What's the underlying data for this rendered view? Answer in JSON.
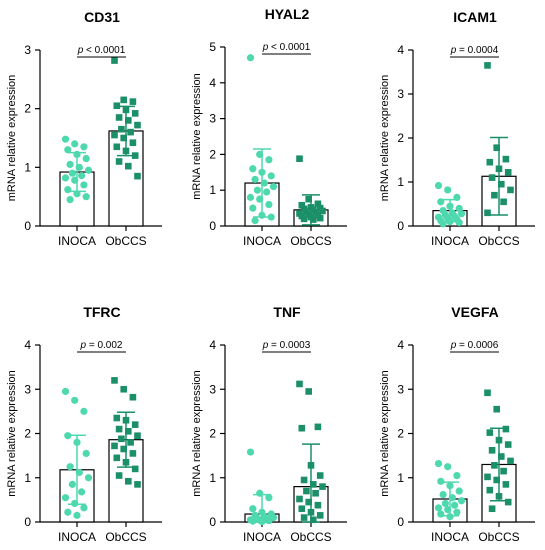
{
  "chart_data": [
    {
      "type": "bar",
      "title": "CD31",
      "ylabel": "mRNA relative expression",
      "categories": [
        "INOCA",
        "ObCCS"
      ],
      "ylim": [
        0,
        3
      ],
      "yticks": [
        0,
        1,
        2,
        3
      ],
      "p_value": "p < 0.0001",
      "series": [
        {
          "values": [
            0.92,
            1.62
          ],
          "error": [
            0.33,
            0.42
          ]
        }
      ],
      "points": [
        [
          1.48,
          1.4,
          1.35,
          1.3,
          1.22,
          1.15,
          1.05,
          1.0,
          0.95,
          0.9,
          0.86,
          0.82,
          0.78,
          0.7,
          0.62,
          0.55,
          0.5,
          0.45
        ],
        [
          2.82,
          2.15,
          2.12,
          2.05,
          1.98,
          1.92,
          1.85,
          1.8,
          1.72,
          1.65,
          1.6,
          1.55,
          1.5,
          1.42,
          1.35,
          1.28,
          1.2,
          1.1,
          1.02,
          0.85
        ]
      ]
    },
    {
      "type": "bar",
      "title": "HYAL2",
      "ylabel": "mRNA relative expression",
      "categories": [
        "INOCA",
        "ObCCS"
      ],
      "ylim": [
        0,
        5
      ],
      "yticks": [
        0,
        1,
        2,
        3,
        4,
        5
      ],
      "p_value": "p < 0.0001",
      "series": [
        {
          "values": [
            1.2,
            0.45
          ],
          "error": [
            0.95,
            0.42
          ]
        }
      ],
      "points": [
        [
          4.7,
          2.0,
          1.85,
          1.6,
          1.5,
          1.4,
          1.3,
          1.2,
          1.1,
          1.0,
          0.95,
          0.8,
          0.75,
          0.6,
          0.5,
          0.3,
          0.25,
          0.15
        ],
        [
          1.88,
          0.75,
          0.62,
          0.58,
          0.52,
          0.5,
          0.48,
          0.45,
          0.42,
          0.4,
          0.38,
          0.35,
          0.32,
          0.3,
          0.28,
          0.25,
          0.22,
          0.2,
          0.18
        ]
      ]
    },
    {
      "type": "bar",
      "title": "ICAM1",
      "ylabel": "mRNA relative expression",
      "categories": [
        "INOCA",
        "ObCCS"
      ],
      "ylim": [
        0,
        4
      ],
      "yticks": [
        0,
        1,
        2,
        3,
        4
      ],
      "p_value": "p = 0.0004",
      "series": [
        {
          "values": [
            0.35,
            1.13
          ],
          "error": [
            0.25,
            0.88
          ]
        }
      ],
      "points": [
        [
          0.92,
          0.82,
          0.65,
          0.55,
          0.45,
          0.4,
          0.35,
          0.3,
          0.28,
          0.25,
          0.22,
          0.2,
          0.18,
          0.15,
          0.12,
          0.1,
          0.08,
          0.05
        ],
        [
          3.65,
          1.78,
          1.52,
          1.45,
          1.3,
          1.22,
          1.1,
          0.95,
          0.82,
          0.7,
          0.55,
          0.3
        ]
      ]
    },
    {
      "type": "bar",
      "title": "TFRC",
      "ylabel": "mRNA relative expression",
      "categories": [
        "INOCA",
        "ObCCS"
      ],
      "ylim": [
        0,
        4
      ],
      "yticks": [
        0,
        1,
        2,
        3,
        4
      ],
      "p_value": "p = 0.002",
      "series": [
        {
          "values": [
            1.18,
            1.86
          ],
          "error": [
            0.78,
            0.62
          ]
        }
      ],
      "points": [
        [
          2.95,
          2.75,
          2.5,
          1.95,
          1.8,
          1.55,
          1.25,
          1.12,
          1.0,
          0.85,
          0.68,
          0.55,
          0.42,
          0.32,
          0.22,
          0.15
        ],
        [
          3.2,
          3.0,
          2.82,
          2.35,
          2.3,
          2.2,
          2.1,
          2.05,
          1.95,
          1.88,
          1.8,
          1.72,
          1.65,
          1.55,
          1.45,
          1.35,
          1.2,
          1.05,
          0.92,
          0.85
        ]
      ]
    },
    {
      "type": "bar",
      "title": "TNF",
      "ylabel": "mRNA relative expression",
      "categories": [
        "INOCA",
        "ObCCS"
      ],
      "ylim": [
        0,
        4
      ],
      "yticks": [
        0,
        1,
        2,
        3,
        4
      ],
      "p_value": "p = 0.0003",
      "series": [
        {
          "values": [
            0.18,
            0.8
          ],
          "error": [
            0.44,
            0.96
          ]
        }
      ],
      "points": [
        [
          1.58,
          0.65,
          0.55,
          0.3,
          0.22,
          0.18,
          0.15,
          0.12,
          0.1,
          0.08,
          0.06,
          0.05,
          0.04,
          0.03,
          0.02,
          0.01
        ],
        [
          3.12,
          2.95,
          2.15,
          2.12,
          1.28,
          1.05,
          0.95,
          0.85,
          0.8,
          0.7,
          0.65,
          0.52,
          0.45,
          0.38,
          0.3,
          0.22,
          0.15,
          0.1,
          0.05
        ]
      ]
    },
    {
      "type": "bar",
      "title": "VEGFA",
      "ylabel": "mRNA relative expression",
      "categories": [
        "INOCA",
        "ObCCS"
      ],
      "ylim": [
        0,
        4
      ],
      "yticks": [
        0,
        1,
        2,
        3,
        4
      ],
      "p_value": "p = 0.0006",
      "series": [
        {
          "values": [
            0.52,
            1.3
          ],
          "error": [
            0.38,
            0.82
          ]
        }
      ],
      "points": [
        [
          1.32,
          1.25,
          1.05,
          0.92,
          0.82,
          0.7,
          0.62,
          0.55,
          0.48,
          0.42,
          0.38,
          0.32,
          0.28,
          0.22,
          0.18,
          0.12
        ],
        [
          2.92,
          2.55,
          2.1,
          2.02,
          1.85,
          1.75,
          1.62,
          1.48,
          1.38,
          1.28,
          1.15,
          1.02,
          0.95,
          0.85,
          0.72,
          0.58,
          0.45,
          0.3
        ]
      ]
    }
  ],
  "colors": {
    "inoca": "#4ED8AE",
    "obccs": "#1A8F68",
    "bar_fill": "#ffffff",
    "axis": "#000000"
  },
  "marker_shapes": [
    "circle",
    "square"
  ]
}
